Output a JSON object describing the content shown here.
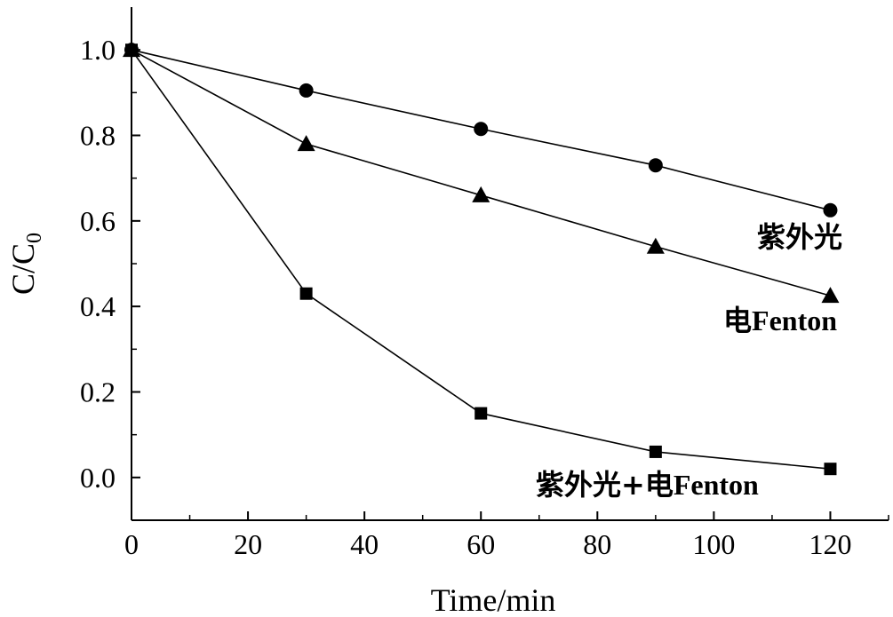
{
  "chart_data": {
    "type": "line",
    "xlabel": "Time/min",
    "ylabel": "C/C0",
    "ylabel_main": "C/C",
    "ylabel_sub": "0",
    "xlim": [
      0,
      130
    ],
    "ylim": [
      -0.1,
      1.1
    ],
    "xticks": [
      0,
      20,
      40,
      60,
      80,
      100,
      120
    ],
    "xtick_labels": [
      "0",
      "20",
      "40",
      "60",
      "80",
      "100",
      "120"
    ],
    "yticks": [
      0.0,
      0.2,
      0.4,
      0.6,
      0.8,
      1.0
    ],
    "ytick_labels": [
      "0.0",
      "0.2",
      "0.4",
      "0.6",
      "0.8",
      "1.0"
    ],
    "grid": false,
    "series": [
      {
        "name": "紫外光",
        "marker": "circle",
        "color": "#000000",
        "x": [
          0,
          30,
          60,
          90,
          120
        ],
        "values": [
          1.0,
          0.905,
          0.815,
          0.73,
          0.625
        ]
      },
      {
        "name": "电Fenton",
        "name_cjk": "电",
        "name_latin": "Fenton",
        "marker": "triangle",
        "color": "#000000",
        "x": [
          0,
          30,
          60,
          90,
          120
        ],
        "values": [
          1.0,
          0.78,
          0.66,
          0.54,
          0.425
        ]
      },
      {
        "name": "紫外光+电Fenton",
        "name_cjk": "紫外光+电",
        "name_latin": "Fenton",
        "marker": "square",
        "color": "#000000",
        "x": [
          0,
          30,
          60,
          90,
          120
        ],
        "values": [
          1.0,
          0.43,
          0.15,
          0.06,
          0.02
        ]
      }
    ]
  }
}
